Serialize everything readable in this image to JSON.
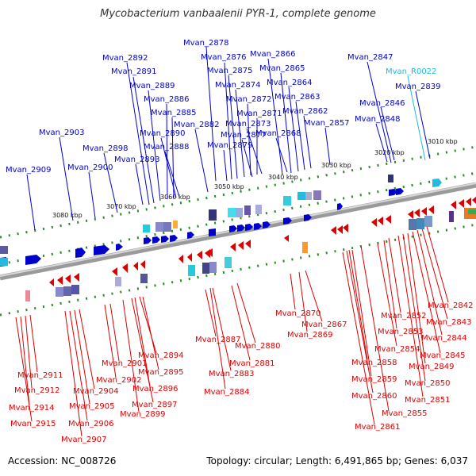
{
  "title": "Mycobacterium vanbaalenii PYR-1, complete genome",
  "footer": {
    "accession": "Accession: NC_008726",
    "summary": "Topology: circular; Length: 6,491,865 bp; Genes: 6,037"
  },
  "colors": {
    "forward": "#0000cc",
    "forward_rna": "#22bbdd",
    "reverse": "#dd0000",
    "ruler": "#228822",
    "backbone": "#888888"
  },
  "ruler_labels": [
    "3010 kbp",
    "3020 kbp",
    "3030 kbp",
    "3040 kbp",
    "3050 kbp",
    "3060 kbp",
    "3070 kbp",
    "3080 kbp"
  ],
  "forward_labels": [
    "Mvan_2878",
    "Mvan_2892",
    "Mvan_2876",
    "Mvan_2866",
    "Mvan_2847",
    "Mvan_2891",
    "Mvan_2875",
    "Mvan_2865",
    "Mvan_R0022",
    "Mvan_2889",
    "Mvan_2874",
    "Mvan_2864",
    "Mvan_2839",
    "Mvan_2886",
    "Mvan_2872",
    "Mvan_2863",
    "Mvan_2846",
    "Mvan_2885",
    "Mvan_2871",
    "Mvan_2862",
    "Mvan_2848",
    "Mvan_2882",
    "Mvan_2873",
    "Mvan_2857",
    "Mvan_2903",
    "Mvan_2890",
    "Mvan_2877",
    "Mvan_2868",
    "Mvan_2898",
    "Mvan_2888",
    "Mvan_2879",
    "Mvan_2893",
    "Mvan_2909",
    "Mvan_2900"
  ],
  "reverse_labels": [
    "Mvan_2842",
    "Mvan_2870",
    "Mvan_2852",
    "Mvan_2843",
    "Mvan_2867",
    "Mvan_2853",
    "Mvan_2869",
    "Mvan_2844",
    "Mvan_2887",
    "Mvan_2880",
    "Mvan_2854",
    "Mvan_2845",
    "Mvan_2858",
    "Mvan_2894",
    "Mvan_2881",
    "Mvan_2849",
    "Mvan_2901",
    "Mvan_2895",
    "Mvan_2883",
    "Mvan_2859",
    "Mvan_2911",
    "Mvan_2902",
    "Mvan_2850",
    "Mvan_2912",
    "Mvan_2904",
    "Mvan_2896",
    "Mvan_2884",
    "Mvan_2860",
    "Mvan_2851",
    "Mvan_2905",
    "Mvan_2897",
    "Mvan_2914",
    "Mvan_2906",
    "Mvan_2899",
    "Mvan_2855",
    "Mvan_2915",
    "Mvan_2861",
    "Mvan_2907"
  ]
}
